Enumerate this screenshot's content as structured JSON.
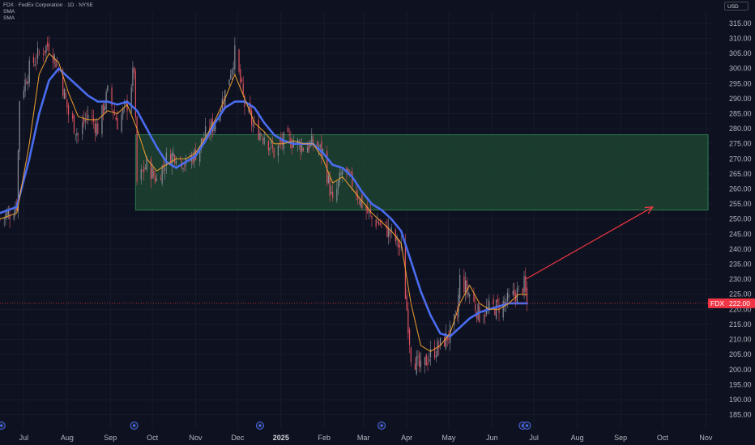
{
  "legend": {
    "symbol_line": "FDX · FedEx Corporation · 1D · NYSE",
    "sma1": "SMA",
    "sma2": "SMA"
  },
  "currency": "USD",
  "colors": {
    "background": "#0e1220",
    "up_candle": "#8a8e99",
    "down_candle": "#e0515f",
    "sma_fast": "#f0a030",
    "sma_slow": "#4a6cf0",
    "zone_fill": "#1f4a33",
    "zone_border": "#2e7d4f",
    "arrow": "#f23645",
    "price_tag": "#f23645"
  },
  "chart_data": {
    "type": "line",
    "y_axis": {
      "range": [
        183,
        319
      ],
      "ticks": [
        315,
        310,
        305,
        300,
        295,
        290,
        285,
        280,
        275,
        270,
        265,
        260,
        255,
        250,
        245,
        240,
        235,
        230,
        225,
        220,
        215,
        210,
        205,
        200,
        195,
        190,
        185
      ],
      "tick_labels": [
        "315.00",
        "310.00",
        "305.00",
        "300.00",
        "295.00",
        "290.00",
        "285.00",
        "280.00",
        "275.00",
        "270.00",
        "265.00",
        "260.00",
        "255.00",
        "250.00",
        "245.00",
        "240.00",
        "235.00",
        "230.00",
        "225.00",
        "220.00",
        "215.00",
        "210.00",
        "205.00",
        "200.00",
        "195.00",
        "190.00",
        "185.00"
      ]
    },
    "x_axis": {
      "range": [
        "2024-06-14",
        "2025-11-06"
      ],
      "ticks": [
        {
          "label": "Jul",
          "date": "2024-07-01",
          "bold": false
        },
        {
          "label": "Aug",
          "date": "2024-08-01",
          "bold": false
        },
        {
          "label": "Sep",
          "date": "2024-09-01",
          "bold": false
        },
        {
          "label": "Oct",
          "date": "2024-10-01",
          "bold": false
        },
        {
          "label": "Nov",
          "date": "2024-11-01",
          "bold": false
        },
        {
          "label": "Dec",
          "date": "2024-12-01",
          "bold": false
        },
        {
          "label": "2025",
          "date": "2025-01-01",
          "bold": true
        },
        {
          "label": "Feb",
          "date": "2025-02-01",
          "bold": false
        },
        {
          "label": "Mar",
          "date": "2025-03-01",
          "bold": false
        },
        {
          "label": "Apr",
          "date": "2025-04-01",
          "bold": false
        },
        {
          "label": "May",
          "date": "2025-05-01",
          "bold": false
        },
        {
          "label": "Jun",
          "date": "2025-06-01",
          "bold": false
        },
        {
          "label": "Jul",
          "date": "2025-07-01",
          "bold": false
        },
        {
          "label": "Aug",
          "date": "2025-08-01",
          "bold": false
        },
        {
          "label": "Sep",
          "date": "2025-09-01",
          "bold": false
        },
        {
          "label": "Oct",
          "date": "2025-10-01",
          "bold": false
        },
        {
          "label": "Nov",
          "date": "2025-11-01",
          "bold": false
        }
      ]
    },
    "close_series": [
      [
        "2024-06-14",
        250
      ],
      [
        "2024-06-21",
        252
      ],
      [
        "2024-06-26",
        255
      ],
      [
        "2024-06-28",
        290
      ],
      [
        "2024-07-05",
        300
      ],
      [
        "2024-07-12",
        305
      ],
      [
        "2024-07-19",
        308
      ],
      [
        "2024-07-26",
        300
      ],
      [
        "2024-08-02",
        285
      ],
      [
        "2024-08-09",
        278
      ],
      [
        "2024-08-16",
        285
      ],
      [
        "2024-08-23",
        280
      ],
      [
        "2024-08-30",
        292
      ],
      [
        "2024-09-06",
        282
      ],
      [
        "2024-09-13",
        288
      ],
      [
        "2024-09-18",
        300
      ],
      [
        "2024-09-20",
        262
      ],
      [
        "2024-09-27",
        268
      ],
      [
        "2024-10-04",
        263
      ],
      [
        "2024-10-11",
        270
      ],
      [
        "2024-10-18",
        272
      ],
      [
        "2024-10-25",
        268
      ],
      [
        "2024-11-01",
        272
      ],
      [
        "2024-11-08",
        278
      ],
      [
        "2024-11-15",
        282
      ],
      [
        "2024-11-22",
        292
      ],
      [
        "2024-11-29",
        305
      ],
      [
        "2024-12-06",
        288
      ],
      [
        "2024-12-13",
        280
      ],
      [
        "2024-12-20",
        278
      ],
      [
        "2024-12-27",
        272
      ],
      [
        "2025-01-03",
        276
      ],
      [
        "2025-01-10",
        276
      ],
      [
        "2025-01-17",
        274
      ],
      [
        "2025-01-24",
        275
      ],
      [
        "2025-01-31",
        272
      ],
      [
        "2025-02-07",
        255
      ],
      [
        "2025-02-14",
        266
      ],
      [
        "2025-02-21",
        262
      ],
      [
        "2025-02-28",
        255
      ],
      [
        "2025-03-07",
        250
      ],
      [
        "2025-03-14",
        248
      ],
      [
        "2025-03-21",
        245
      ],
      [
        "2025-03-28",
        240
      ],
      [
        "2025-04-04",
        205
      ],
      [
        "2025-04-11",
        200
      ],
      [
        "2025-04-18",
        205
      ],
      [
        "2025-04-25",
        208
      ],
      [
        "2025-05-02",
        212
      ],
      [
        "2025-05-07",
        218
      ],
      [
        "2025-05-09",
        230
      ],
      [
        "2025-05-16",
        225
      ],
      [
        "2025-05-23",
        218
      ],
      [
        "2025-05-30",
        220
      ],
      [
        "2025-06-06",
        221
      ],
      [
        "2025-06-13",
        223
      ],
      [
        "2025-06-20",
        226
      ],
      [
        "2025-06-24",
        228
      ],
      [
        "2025-06-26",
        222
      ]
    ],
    "sma_fast": [
      [
        "2024-06-14",
        250
      ],
      [
        "2024-06-26",
        252
      ],
      [
        "2024-07-05",
        275
      ],
      [
        "2024-07-12",
        298
      ],
      [
        "2024-07-19",
        305
      ],
      [
        "2024-07-26",
        302
      ],
      [
        "2024-08-02",
        292
      ],
      [
        "2024-08-09",
        284
      ],
      [
        "2024-08-16",
        283
      ],
      [
        "2024-08-23",
        283
      ],
      [
        "2024-08-30",
        286
      ],
      [
        "2024-09-06",
        285
      ],
      [
        "2024-09-13",
        288
      ],
      [
        "2024-09-20",
        280
      ],
      [
        "2024-09-27",
        270
      ],
      [
        "2024-10-04",
        266
      ],
      [
        "2024-10-11",
        268
      ],
      [
        "2024-10-18",
        270
      ],
      [
        "2024-10-25",
        270
      ],
      [
        "2024-11-01",
        272
      ],
      [
        "2024-11-08",
        277
      ],
      [
        "2024-11-15",
        283
      ],
      [
        "2024-11-22",
        290
      ],
      [
        "2024-11-29",
        298
      ],
      [
        "2024-12-06",
        290
      ],
      [
        "2024-12-13",
        282
      ],
      [
        "2024-12-20",
        279
      ],
      [
        "2024-12-27",
        275
      ],
      [
        "2025-01-03",
        275
      ],
      [
        "2025-01-10",
        276
      ],
      [
        "2025-01-17",
        275
      ],
      [
        "2025-01-24",
        275
      ],
      [
        "2025-01-31",
        270
      ],
      [
        "2025-02-07",
        262
      ],
      [
        "2025-02-14",
        264
      ],
      [
        "2025-02-21",
        260
      ],
      [
        "2025-02-28",
        256
      ],
      [
        "2025-03-07",
        252
      ],
      [
        "2025-03-14",
        249
      ],
      [
        "2025-03-21",
        246
      ],
      [
        "2025-03-28",
        242
      ],
      [
        "2025-04-04",
        222
      ],
      [
        "2025-04-11",
        208
      ],
      [
        "2025-04-18",
        206
      ],
      [
        "2025-04-25",
        208
      ],
      [
        "2025-05-02",
        212
      ],
      [
        "2025-05-09",
        222
      ],
      [
        "2025-05-16",
        228
      ],
      [
        "2025-05-23",
        222
      ],
      [
        "2025-05-30",
        220
      ],
      [
        "2025-06-06",
        220
      ],
      [
        "2025-06-13",
        222
      ],
      [
        "2025-06-20",
        225
      ],
      [
        "2025-06-26",
        225
      ]
    ],
    "sma_slow": [
      [
        "2024-06-14",
        252
      ],
      [
        "2024-06-26",
        254
      ],
      [
        "2024-07-05",
        270
      ],
      [
        "2024-07-12",
        285
      ],
      [
        "2024-07-19",
        296
      ],
      [
        "2024-07-26",
        300
      ],
      [
        "2024-08-02",
        297
      ],
      [
        "2024-08-09",
        294
      ],
      [
        "2024-08-16",
        291
      ],
      [
        "2024-08-23",
        289
      ],
      [
        "2024-08-30",
        289
      ],
      [
        "2024-09-06",
        288
      ],
      [
        "2024-09-13",
        289
      ],
      [
        "2024-09-20",
        286
      ],
      [
        "2024-09-27",
        280
      ],
      [
        "2024-10-04",
        274
      ],
      [
        "2024-10-11",
        269
      ],
      [
        "2024-10-18",
        267
      ],
      [
        "2024-10-25",
        269
      ],
      [
        "2024-11-01",
        271
      ],
      [
        "2024-11-08",
        276
      ],
      [
        "2024-11-15",
        282
      ],
      [
        "2024-11-22",
        287
      ],
      [
        "2024-11-29",
        289
      ],
      [
        "2024-12-06",
        289
      ],
      [
        "2024-12-13",
        287
      ],
      [
        "2024-12-20",
        282
      ],
      [
        "2024-12-27",
        278
      ],
      [
        "2025-01-03",
        276
      ],
      [
        "2025-01-10",
        275
      ],
      [
        "2025-01-17",
        275
      ],
      [
        "2025-01-24",
        275
      ],
      [
        "2025-01-31",
        272
      ],
      [
        "2025-02-07",
        268
      ],
      [
        "2025-02-14",
        267
      ],
      [
        "2025-02-21",
        264
      ],
      [
        "2025-02-28",
        259
      ],
      [
        "2025-03-07",
        255
      ],
      [
        "2025-03-14",
        253
      ],
      [
        "2025-03-21",
        250
      ],
      [
        "2025-03-28",
        246
      ],
      [
        "2025-04-04",
        236
      ],
      [
        "2025-04-11",
        226
      ],
      [
        "2025-04-18",
        218
      ],
      [
        "2025-04-25",
        212
      ],
      [
        "2025-05-02",
        211
      ],
      [
        "2025-05-09",
        214
      ],
      [
        "2025-05-16",
        217
      ],
      [
        "2025-05-23",
        219
      ],
      [
        "2025-05-30",
        220
      ],
      [
        "2025-06-06",
        221
      ],
      [
        "2025-06-13",
        222
      ],
      [
        "2025-06-20",
        222
      ],
      [
        "2025-06-26",
        222
      ]
    ],
    "zone": {
      "start": "2024-09-19",
      "end": "2025-11-06",
      "top": 278,
      "bottom": 253
    },
    "arrow": {
      "from": [
        "2025-06-25",
        230
      ],
      "to": [
        "2025-09-24",
        254
      ]
    },
    "current_price": {
      "value": 222,
      "label": "222.00",
      "ticker": "FDX"
    },
    "events": [
      {
        "date": "2024-06-15"
      },
      {
        "date": "2024-09-18"
      },
      {
        "date": "2024-12-17"
      },
      {
        "date": "2025-03-14"
      },
      {
        "date": "2025-06-23"
      },
      {
        "date": "2025-06-26"
      }
    ]
  }
}
